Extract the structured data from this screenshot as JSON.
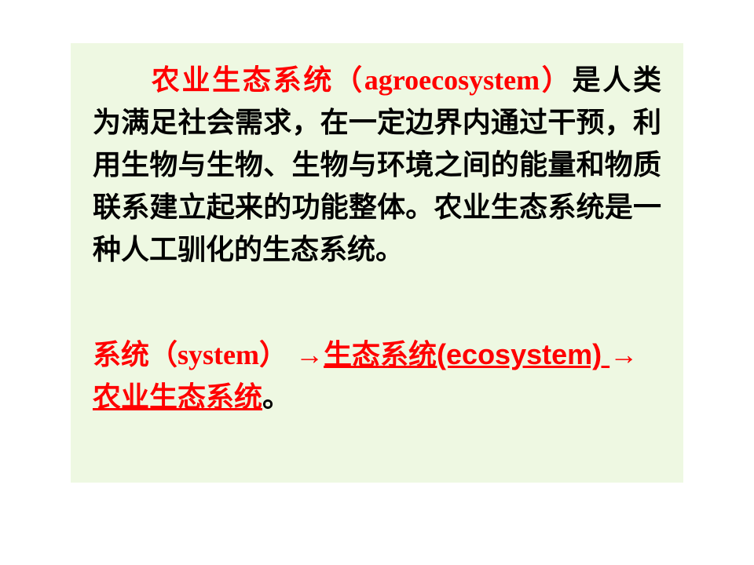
{
  "paragraph1": {
    "term_cn": "农业生态系统（",
    "term_en": "agroecosystem",
    "term_close": "）",
    "rest": "是人类为满足社会需求，在一定边界内通过干预，利用生物与生物、生物与环境之间的能量和物质联系建立起来的功能整体。农业生态系统是一种人工驯化的生态系统。"
  },
  "paragraph2": {
    "part1_cn": "系统（",
    "part1_en": "system",
    "part1_close": "）",
    "arrow1": "→",
    "link1": "生态系统(ecosystem) ",
    "arrow2": "→",
    "link2": "农业生态系统",
    "period": "。"
  },
  "colors": {
    "background": "#ffffff",
    "box_background": "#eef8e2",
    "text": "#000000",
    "highlight": "#ff0000"
  },
  "typography": {
    "font_size": 36,
    "font_weight": "bold",
    "line_height": 1.5
  }
}
